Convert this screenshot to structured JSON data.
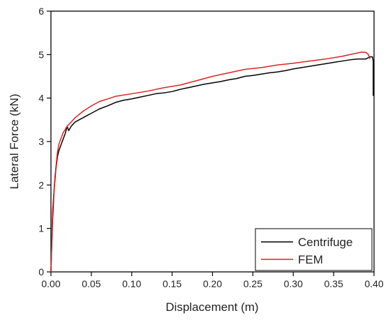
{
  "chart_data": {
    "type": "line",
    "title": "",
    "xlabel": "Displacement (m)",
    "ylabel": "Lateral Force (kN)",
    "xlim": [
      0.0,
      0.4
    ],
    "ylim": [
      0,
      6
    ],
    "x_ticks": [
      "0.00",
      "0.05",
      "0.10",
      "0.15",
      "0.20",
      "0.25",
      "0.30",
      "0.35",
      "0.40"
    ],
    "y_ticks": [
      "0",
      "1",
      "2",
      "3",
      "4",
      "5",
      "6"
    ],
    "grid": false,
    "legend": {
      "position": "bottom-right",
      "entries": [
        "Centrifuge",
        "FEM"
      ]
    },
    "series": [
      {
        "name": "Centrifuge",
        "color": "#000000",
        "x": [
          0.0,
          0.002,
          0.004,
          0.006,
          0.008,
          0.01,
          0.012,
          0.014,
          0.016,
          0.018,
          0.02,
          0.022,
          0.025,
          0.03,
          0.035,
          0.04,
          0.05,
          0.06,
          0.07,
          0.08,
          0.09,
          0.1,
          0.11,
          0.12,
          0.13,
          0.14,
          0.15,
          0.16,
          0.17,
          0.18,
          0.19,
          0.2,
          0.21,
          0.22,
          0.23,
          0.24,
          0.25,
          0.26,
          0.27,
          0.28,
          0.29,
          0.3,
          0.31,
          0.32,
          0.33,
          0.34,
          0.35,
          0.36,
          0.37,
          0.38,
          0.39,
          0.395,
          0.398,
          0.399,
          0.399
        ],
        "y": [
          0.0,
          1.2,
          1.9,
          2.35,
          2.65,
          2.8,
          2.9,
          3.0,
          3.1,
          3.2,
          3.35,
          3.25,
          3.35,
          3.45,
          3.5,
          3.55,
          3.65,
          3.75,
          3.82,
          3.9,
          3.95,
          3.98,
          4.02,
          4.06,
          4.1,
          4.12,
          4.15,
          4.2,
          4.24,
          4.28,
          4.32,
          4.35,
          4.38,
          4.42,
          4.45,
          4.5,
          4.52,
          4.55,
          4.58,
          4.6,
          4.63,
          4.67,
          4.7,
          4.73,
          4.76,
          4.79,
          4.82,
          4.85,
          4.88,
          4.9,
          4.9,
          4.95,
          4.95,
          4.85,
          4.05
        ]
      },
      {
        "name": "FEM",
        "color": "#e02020",
        "x": [
          0.0,
          0.002,
          0.005,
          0.008,
          0.01,
          0.015,
          0.02,
          0.025,
          0.03,
          0.04,
          0.05,
          0.06,
          0.07,
          0.08,
          0.1,
          0.12,
          0.14,
          0.16,
          0.18,
          0.2,
          0.22,
          0.24,
          0.26,
          0.28,
          0.3,
          0.32,
          0.34,
          0.36,
          0.37,
          0.38,
          0.385,
          0.39,
          0.393,
          0.395
        ],
        "y": [
          0.0,
          1.4,
          2.2,
          2.75,
          2.95,
          3.2,
          3.35,
          3.45,
          3.55,
          3.7,
          3.82,
          3.92,
          3.98,
          4.04,
          4.1,
          4.16,
          4.24,
          4.3,
          4.4,
          4.5,
          4.58,
          4.66,
          4.7,
          4.76,
          4.8,
          4.85,
          4.9,
          4.96,
          5.0,
          5.04,
          5.06,
          5.05,
          5.0,
          4.9
        ]
      }
    ]
  }
}
